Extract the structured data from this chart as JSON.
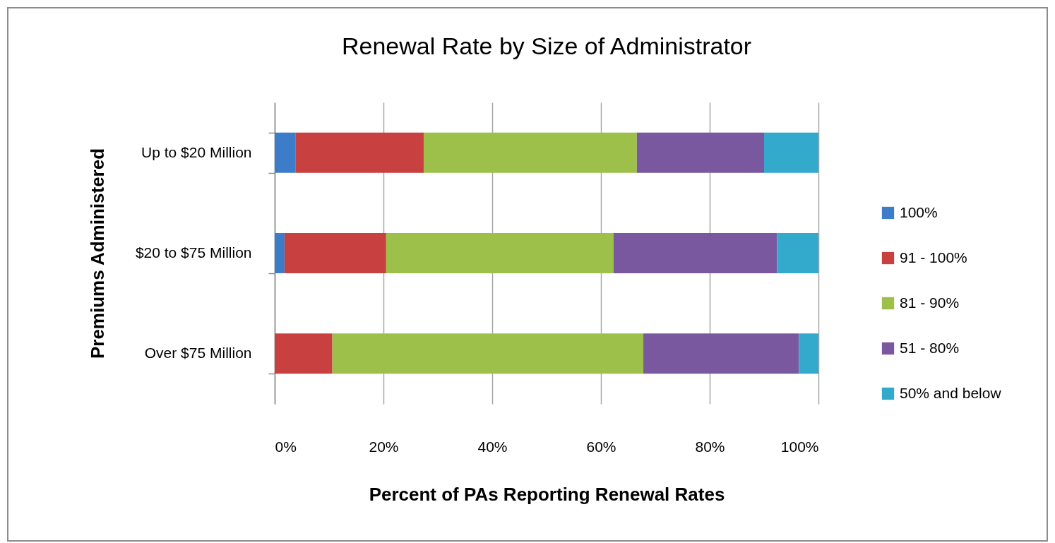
{
  "chart_data": {
    "type": "bar",
    "orientation": "horizontal",
    "stacked": true,
    "title": "Renewal Rate by Size of Administrator",
    "xlabel": "Percent of PAs Reporting Renewal Rates",
    "ylabel": "Premiums Administered",
    "categories": [
      "Up to $20 Million",
      "$20 to $75 Million",
      "Over $75 Million"
    ],
    "series": [
      {
        "name": "100%",
        "color": "#3d7cc9",
        "values": [
          3.8,
          1.8,
          0
        ]
      },
      {
        "name": "91 - 100%",
        "color": "#c94040",
        "values": [
          23.6,
          18.7,
          10.6
        ]
      },
      {
        "name": "81 - 90%",
        "color": "#9cc04a",
        "values": [
          39.2,
          41.8,
          57.2
        ]
      },
      {
        "name": "51 - 80%",
        "color": "#7a58a0",
        "values": [
          23.4,
          30.1,
          28.6
        ]
      },
      {
        "name": "50% and below",
        "color": "#33aacc",
        "values": [
          10.0,
          7.6,
          3.6
        ]
      }
    ],
    "xlim": [
      0,
      100
    ],
    "xticks": [
      {
        "value": 0,
        "label": "0%"
      },
      {
        "value": 20,
        "label": "20%"
      },
      {
        "value": 40,
        "label": "40%"
      },
      {
        "value": 60,
        "label": "60%"
      },
      {
        "value": 80,
        "label": "80%"
      },
      {
        "value": 100,
        "label": "100%"
      }
    ],
    "grid": "x",
    "legend": "right"
  }
}
